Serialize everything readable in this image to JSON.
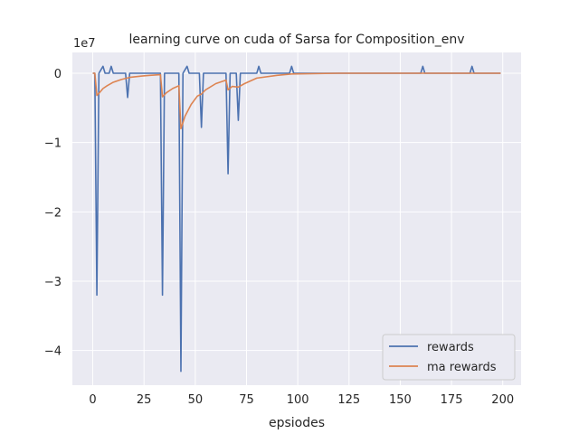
{
  "chart_data": {
    "type": "line",
    "title": "learning curve on cuda of Sarsa for Composition_env",
    "xlabel": "epsiodes",
    "ylabel": "",
    "y_offset_label": "1e7",
    "xlim": [
      -9.95,
      208.95
    ],
    "ylim": [
      -4.5,
      0.3
    ],
    "x_ticks": [
      0,
      25,
      50,
      75,
      100,
      125,
      150,
      175,
      200
    ],
    "y_ticks": [
      0,
      -1,
      -2,
      -3,
      -4
    ],
    "y_tick_labels": [
      "0",
      "−1",
      "−2",
      "−3",
      "−4"
    ],
    "grid": true,
    "legend_position": "lower-right",
    "series": [
      {
        "name": "rewards",
        "color": "#4c72b0",
        "points": [
          [
            0,
            0
          ],
          [
            1,
            0
          ],
          [
            2,
            -3.2
          ],
          [
            3,
            0
          ],
          [
            5,
            0.1
          ],
          [
            6,
            0
          ],
          [
            8,
            0
          ],
          [
            9,
            0.1
          ],
          [
            10,
            0
          ],
          [
            16,
            0
          ],
          [
            17,
            -0.35
          ],
          [
            18,
            0
          ],
          [
            33,
            0
          ],
          [
            34,
            -3.2
          ],
          [
            35,
            0
          ],
          [
            42,
            0
          ],
          [
            43,
            -4.3
          ],
          [
            44,
            0
          ],
          [
            46,
            0.1
          ],
          [
            47,
            0
          ],
          [
            52,
            0
          ],
          [
            53,
            -0.78
          ],
          [
            54,
            0
          ],
          [
            65,
            0
          ],
          [
            66,
            -1.45
          ],
          [
            67,
            0
          ],
          [
            70,
            0
          ],
          [
            71,
            -0.68
          ],
          [
            72,
            0
          ],
          [
            80,
            0
          ],
          [
            81,
            0.1
          ],
          [
            82,
            0
          ],
          [
            96,
            0
          ],
          [
            97,
            0.1
          ],
          [
            98,
            0
          ],
          [
            160,
            0
          ],
          [
            161,
            0.1
          ],
          [
            162,
            0
          ],
          [
            184,
            0
          ],
          [
            185,
            0.1
          ],
          [
            186,
            0
          ],
          [
            199,
            0
          ]
        ]
      },
      {
        "name": "ma rewards",
        "color": "#dd8452",
        "points": [
          [
            0,
            0
          ],
          [
            1,
            0
          ],
          [
            2,
            -0.32
          ],
          [
            3,
            -0.29
          ],
          [
            5,
            -0.22
          ],
          [
            7,
            -0.18
          ],
          [
            10,
            -0.13
          ],
          [
            14,
            -0.09
          ],
          [
            18,
            -0.06
          ],
          [
            24,
            -0.04
          ],
          [
            28,
            -0.03
          ],
          [
            33,
            -0.02
          ],
          [
            34,
            -0.34
          ],
          [
            36,
            -0.28
          ],
          [
            39,
            -0.22
          ],
          [
            42,
            -0.18
          ],
          [
            43,
            -0.8
          ],
          [
            45,
            -0.62
          ],
          [
            48,
            -0.45
          ],
          [
            51,
            -0.33
          ],
          [
            53,
            -0.3
          ],
          [
            55,
            -0.24
          ],
          [
            60,
            -0.15
          ],
          [
            65,
            -0.1
          ],
          [
            66,
            -0.24
          ],
          [
            68,
            -0.19
          ],
          [
            71,
            -0.2
          ],
          [
            74,
            -0.15
          ],
          [
            80,
            -0.07
          ],
          [
            90,
            -0.03
          ],
          [
            97,
            -0.01
          ],
          [
            120,
            0
          ],
          [
            160,
            0
          ],
          [
            185,
            0
          ],
          [
            199,
            0
          ]
        ]
      }
    ]
  }
}
